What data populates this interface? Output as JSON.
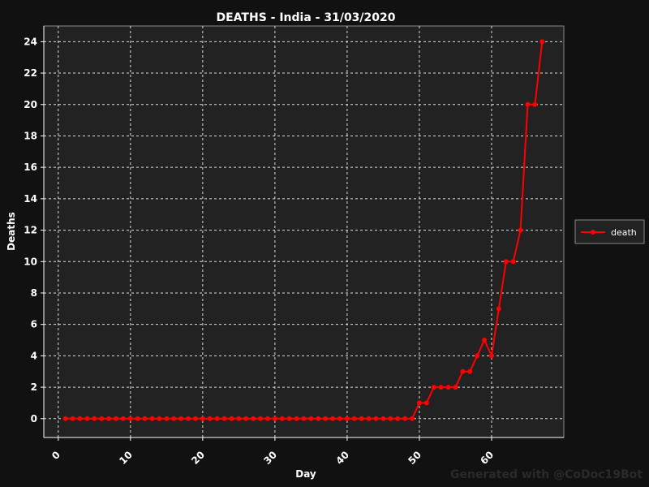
{
  "chart_data": {
    "type": "line",
    "title": "DEATHS - India - 31/03/2020",
    "xlabel": "Day",
    "ylabel": "Deaths",
    "xlim": [
      -2,
      70
    ],
    "ylim": [
      -1.2,
      25
    ],
    "xticks": [
      0,
      10,
      20,
      30,
      40,
      50,
      60
    ],
    "yticks": [
      0,
      2,
      4,
      6,
      8,
      10,
      12,
      14,
      16,
      18,
      20,
      22,
      24
    ],
    "grid": true,
    "legend_position": "right",
    "series": [
      {
        "name": "death",
        "color": "#ff0000",
        "marker": "circle",
        "x": [
          1,
          2,
          3,
          4,
          5,
          6,
          7,
          8,
          9,
          10,
          11,
          12,
          13,
          14,
          15,
          16,
          17,
          18,
          19,
          20,
          21,
          22,
          23,
          24,
          25,
          26,
          27,
          28,
          29,
          30,
          31,
          32,
          33,
          34,
          35,
          36,
          37,
          38,
          39,
          40,
          41,
          42,
          43,
          44,
          45,
          46,
          47,
          48,
          49,
          50,
          51,
          52,
          53,
          54,
          55,
          56,
          57,
          58,
          59,
          60,
          61,
          62,
          63,
          64,
          65,
          66,
          67
        ],
        "values": [
          0,
          0,
          0,
          0,
          0,
          0,
          0,
          0,
          0,
          0,
          0,
          0,
          0,
          0,
          0,
          0,
          0,
          0,
          0,
          0,
          0,
          0,
          0,
          0,
          0,
          0,
          0,
          0,
          0,
          0,
          0,
          0,
          0,
          0,
          0,
          0,
          0,
          0,
          0,
          0,
          0,
          0,
          0,
          0,
          0,
          0,
          0,
          0,
          0,
          1,
          1,
          2,
          2,
          2,
          2,
          3,
          3,
          4,
          5,
          4,
          7,
          10,
          10,
          12,
          20,
          20,
          24
        ]
      }
    ],
    "watermark": "Generated with @CoDoc19Bot"
  },
  "colors": {
    "figure_bg": "#111111",
    "plot_bg": "#222222",
    "grid": "#dddddd",
    "text": "#ffffff",
    "frame": "#888888"
  }
}
